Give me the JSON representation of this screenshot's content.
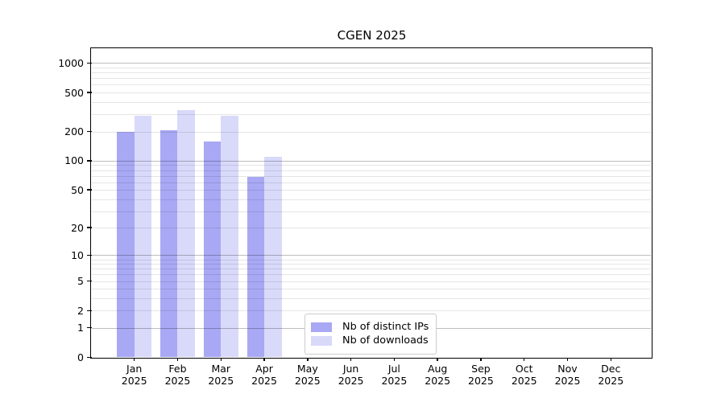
{
  "chart_data": {
    "type": "bar",
    "title": "CGEN 2025",
    "y_scale": "log10(1+x)",
    "ylim": [
      0,
      1400
    ],
    "grid": true,
    "legend_position": "lower center",
    "x_tick_months": [
      "Jan",
      "Feb",
      "Mar",
      "Apr",
      "May",
      "Jun",
      "Jul",
      "Aug",
      "Sep",
      "Oct",
      "Nov",
      "Dec"
    ],
    "x_tick_year": "2025",
    "y_ticks": [
      0,
      1,
      2,
      5,
      10,
      20,
      50,
      100,
      200,
      500,
      1000
    ],
    "y_major_gridlines": [
      1,
      10,
      100,
      1000
    ],
    "series": [
      {
        "name": "Nb of distinct IPs",
        "color": "#a8a8f4",
        "values": [
          200,
          204,
          157,
          68,
          null,
          null,
          null,
          null,
          null,
          null,
          null,
          null
        ]
      },
      {
        "name": "Nb of downloads",
        "color": "#d9d9fa",
        "values": [
          290,
          332,
          287,
          110,
          null,
          null,
          null,
          null,
          null,
          null,
          null,
          null
        ]
      }
    ]
  }
}
